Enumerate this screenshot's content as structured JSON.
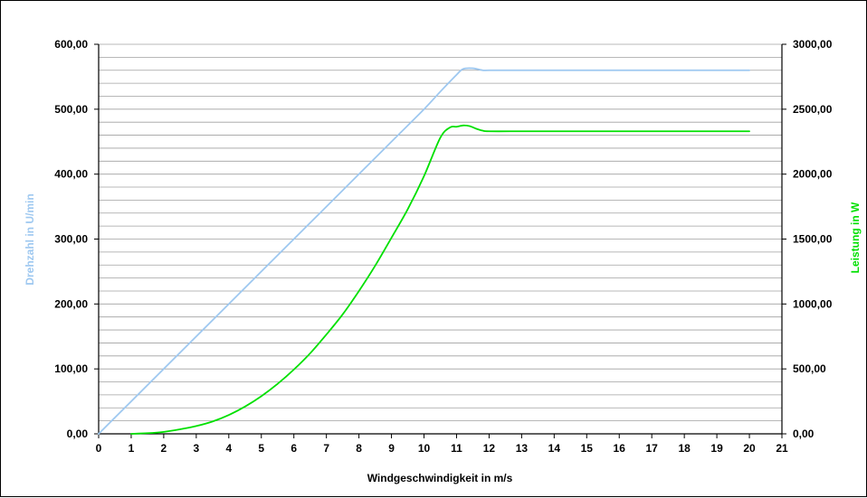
{
  "chart_data": {
    "type": "line",
    "title": "",
    "xlabel": "Windgeschwindigkeit in m/s",
    "ylabel_left": "Drehzahl in U/min",
    "ylabel_right": "Leistung in W",
    "xlim": [
      0,
      21
    ],
    "ylim_left": [
      0,
      600
    ],
    "ylim_right": [
      0,
      3000
    ],
    "grid": true,
    "legend": "none",
    "x_ticks": [
      "0",
      "1",
      "2",
      "3",
      "4",
      "5",
      "6",
      "7",
      "8",
      "9",
      "10",
      "11",
      "12",
      "13",
      "14",
      "15",
      "16",
      "17",
      "18",
      "19",
      "20",
      "21"
    ],
    "y_left_ticks": [
      "0,00",
      "100,00",
      "200,00",
      "300,00",
      "400,00",
      "500,00",
      "600,00"
    ],
    "y_right_ticks": [
      "0,00",
      "500,00",
      "1000,00",
      "1500,00",
      "2000,00",
      "2500,00",
      "3000,00"
    ],
    "colors": {
      "drehzahl": "#9ec8f0",
      "leistung": "#00e000",
      "grid": "#a0a0a0",
      "axis": "#000000"
    },
    "series": [
      {
        "key": "drehzahl",
        "axis": "left",
        "x": [
          0,
          1,
          2,
          3,
          4,
          5,
          6,
          7,
          8,
          9,
          10,
          10.5,
          11,
          11.2,
          11.5,
          11.8,
          12,
          13,
          14,
          15,
          16,
          17,
          18,
          19,
          20
        ],
        "values": [
          0,
          50,
          100,
          150,
          200,
          250,
          300,
          350,
          400,
          450,
          500,
          527,
          553,
          562,
          563,
          560,
          560,
          560,
          560,
          560,
          560,
          560,
          560,
          560,
          560
        ]
      },
      {
        "key": "leistung",
        "axis": "right",
        "x": [
          1,
          1.5,
          2,
          2.5,
          3,
          3.5,
          4,
          4.5,
          5,
          5.5,
          6,
          6.5,
          7,
          7.5,
          8,
          8.5,
          9,
          9.5,
          10,
          10.5,
          10.8,
          11,
          11.2,
          11.4,
          11.6,
          11.8,
          12,
          13,
          14,
          15,
          16,
          17,
          18,
          19,
          20
        ],
        "values": [
          0,
          5,
          15,
          35,
          60,
          95,
          145,
          210,
          290,
          385,
          495,
          620,
          765,
          920,
          1100,
          1295,
          1510,
          1730,
          1985,
          2280,
          2360,
          2365,
          2375,
          2370,
          2350,
          2335,
          2330,
          2330,
          2330,
          2330,
          2330,
          2330,
          2330,
          2330,
          2330
        ]
      }
    ]
  }
}
